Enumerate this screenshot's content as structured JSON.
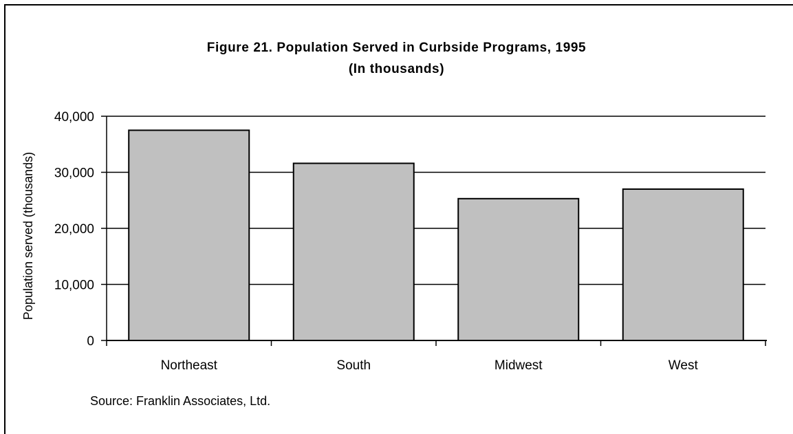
{
  "chart_data": {
    "type": "bar",
    "title": "Figure 21. Population Served in Curbside Programs, 1995",
    "subtitle": "(In thousands)",
    "xlabel": "",
    "ylabel": "Population served (thousands)",
    "categories": [
      "Northeast",
      "South",
      "Midwest",
      "West"
    ],
    "values": [
      37500,
      31600,
      25300,
      27000
    ],
    "ylim": [
      0,
      40000
    ],
    "yticks": [
      0,
      10000,
      20000,
      30000,
      40000
    ],
    "ytick_labels": [
      "0",
      "10,000",
      "20,000",
      "30,000",
      "40,000"
    ],
    "grid": true,
    "legend": "none",
    "bar_color": "#c0c0c0",
    "edge_color": "#000000"
  },
  "source": "Source: Franklin Associates, Ltd."
}
